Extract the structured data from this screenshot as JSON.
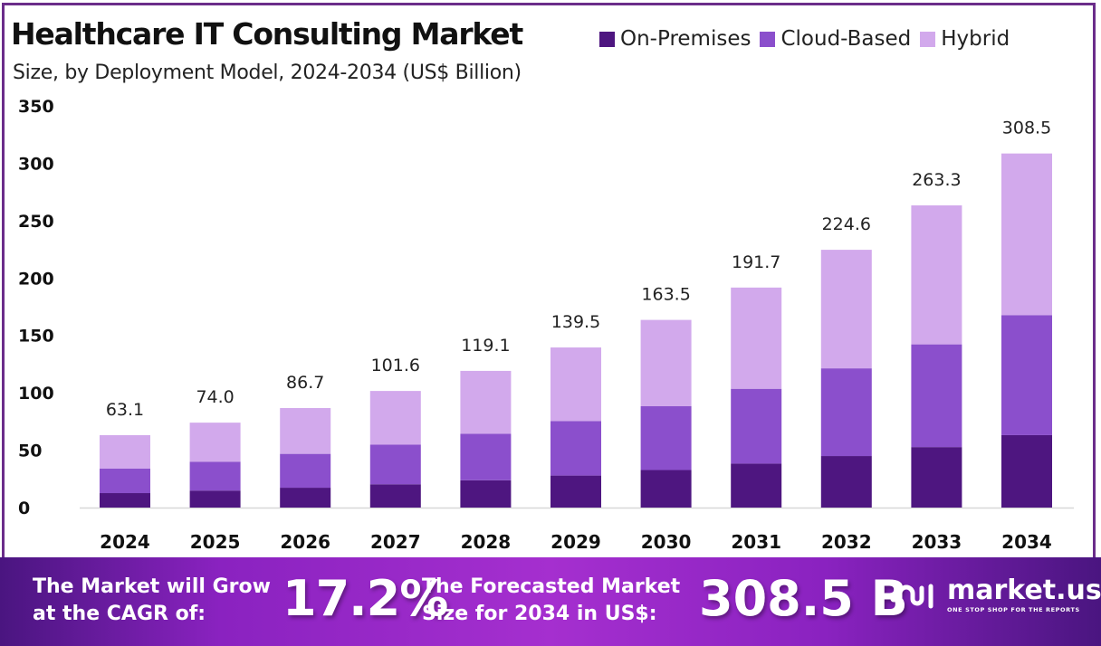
{
  "header": {
    "title": "Healthcare IT Consulting Market",
    "subtitle": "Size, by Deployment Model, 2024-2034 (US$ Billion)"
  },
  "colors": {
    "on_premises": "#4e1680",
    "cloud_based": "#8b4fcc",
    "hybrid": "#d2a9ec",
    "frame": "#6b2d8a"
  },
  "chart_data": {
    "type": "bar",
    "stacked": true,
    "title": "Healthcare IT Consulting Market",
    "subtitle": "Size, by Deployment Model, 2024-2034 (US$ Billion)",
    "xlabel": "",
    "ylabel": "",
    "ylim": [
      0,
      350
    ],
    "yticks": [
      0,
      50,
      100,
      150,
      200,
      250,
      300,
      350
    ],
    "grid": false,
    "legend_position": "top-right",
    "categories": [
      "2024",
      "2025",
      "2026",
      "2027",
      "2028",
      "2029",
      "2030",
      "2031",
      "2032",
      "2033",
      "2034"
    ],
    "totals": [
      63.1,
      74.0,
      86.7,
      101.6,
      119.1,
      139.5,
      163.5,
      191.7,
      224.6,
      263.3,
      308.5
    ],
    "total_labels": [
      "63.1",
      "74.0",
      "86.7",
      "101.6",
      "119.1",
      "139.5",
      "163.5",
      "191.7",
      "224.6",
      "263.3",
      "308.5"
    ],
    "series": [
      {
        "name": "On-Premises",
        "values": [
          12.6,
          14.8,
          17.3,
          20.3,
          23.8,
          27.9,
          32.7,
          38.3,
          44.9,
          52.7,
          63.1
        ]
      },
      {
        "name": "Cloud-Based",
        "values": [
          21.3,
          25.2,
          29.5,
          34.5,
          40.5,
          47.4,
          55.6,
          65.2,
          76.4,
          89.5,
          104.6
        ]
      },
      {
        "name": "Hybrid",
        "values": [
          29.2,
          34.0,
          39.9,
          46.8,
          54.8,
          64.2,
          75.2,
          88.2,
          103.3,
          121.1,
          140.8
        ]
      }
    ]
  },
  "footer": {
    "cagr_text_line1": "The Market will Grow",
    "cagr_text_line2": "at the CAGR of:",
    "cagr_value": "17.2%",
    "forecast_text_line1": "The Forecasted Market",
    "forecast_text_line2": "Size for 2034 in US$:",
    "forecast_value": "308.5 B",
    "logo_name": "market.us",
    "logo_tagline": "ONE STOP SHOP FOR THE REPORTS"
  }
}
